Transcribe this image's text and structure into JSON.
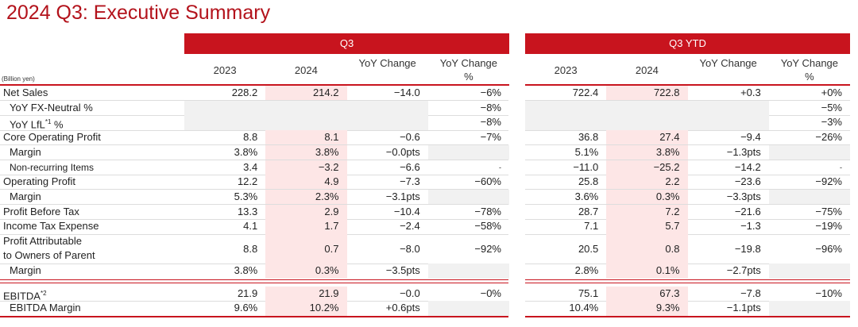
{
  "title": "2024 Q3: Executive Summary",
  "unit": "(Billion yen)",
  "groups": [
    "Q3",
    "Q3 YTD"
  ],
  "columns": [
    "2023",
    "2024",
    "YoY Change",
    "YoY Change %"
  ],
  "rows": [
    {
      "label": "Net Sales",
      "q3": [
        "228.2",
        "214.2",
        "−14.0",
        "−6%"
      ],
      "ytd": [
        "722.4",
        "722.8",
        "+0.3",
        "+0%"
      ]
    },
    {
      "label": "YoY FX-Neutral %",
      "q3": [
        null,
        null,
        null,
        "−8%"
      ],
      "ytd": [
        null,
        null,
        null,
        "−5%"
      ]
    },
    {
      "label": "YoY LfL",
      "note": "*1",
      "after": "%",
      "q3": [
        null,
        null,
        null,
        "−8%"
      ],
      "ytd": [
        null,
        null,
        null,
        "−3%"
      ]
    },
    {
      "label": "Core Operating Profit",
      "q3": [
        "8.8",
        "8.1",
        "−0.6",
        "−7%"
      ],
      "ytd": [
        "36.8",
        "27.4",
        "−9.4",
        "−26%"
      ]
    },
    {
      "label": "Margin",
      "q3": [
        "3.8%",
        "3.8%",
        "−0.0pts",
        null
      ],
      "ytd": [
        "5.1%",
        "3.8%",
        "−1.3pts",
        null
      ]
    },
    {
      "label": "Non-recurring Items",
      "q3": [
        "3.4",
        "−3.2",
        "−6.6",
        "-"
      ],
      "ytd": [
        "−11.0",
        "−25.2",
        "−14.2",
        "-"
      ]
    },
    {
      "label": "Operating Profit",
      "q3": [
        "12.2",
        "4.9",
        "−7.3",
        "−60%"
      ],
      "ytd": [
        "25.8",
        "2.2",
        "−23.6",
        "−92%"
      ]
    },
    {
      "label": "Margin",
      "q3": [
        "5.3%",
        "2.3%",
        "−3.1pts",
        null
      ],
      "ytd": [
        "3.6%",
        "0.3%",
        "−3.3pts",
        null
      ]
    },
    {
      "label": "Profit Before Tax",
      "q3": [
        "13.3",
        "2.9",
        "−10.4",
        "−78%"
      ],
      "ytd": [
        "28.7",
        "7.2",
        "−21.6",
        "−75%"
      ]
    },
    {
      "label": "Income Tax Expense",
      "q3": [
        "4.1",
        "1.7",
        "−2.4",
        "−58%"
      ],
      "ytd": [
        "7.1",
        "5.7",
        "−1.3",
        "−19%"
      ]
    },
    {
      "label": [
        "Profit Attributable",
        "to Owners of Parent"
      ],
      "q3": [
        "8.8",
        "0.7",
        "−8.0",
        "−92%"
      ],
      "ytd": [
        "20.5",
        "0.8",
        "−19.8",
        "−96%"
      ]
    },
    {
      "label": "Margin",
      "q3": [
        "3.8%",
        "0.3%",
        "−3.5pts",
        null
      ],
      "ytd": [
        "2.8%",
        "0.1%",
        "−2.7pts",
        null
      ]
    },
    {
      "label": "EBITDA",
      "note": "*2",
      "q3": [
        "21.9",
        "21.9",
        "−0.0",
        "−0%"
      ],
      "ytd": [
        "75.1",
        "67.3",
        "−7.8",
        "−10%"
      ]
    },
    {
      "label": "EBITDA Margin",
      "q3": [
        "9.6%",
        "10.2%",
        "+0.6pts",
        null
      ],
      "ytd": [
        "10.4%",
        "9.3%",
        "−1.1pts",
        null
      ]
    }
  ]
}
